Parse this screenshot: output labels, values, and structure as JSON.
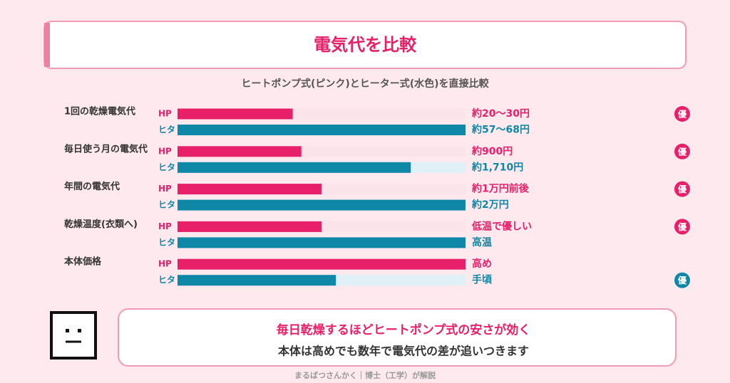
{
  "title": "電気代を比較",
  "subtitle": "ヒートポンプ式(ピンク)とヒーター式(水色)を直接比較",
  "series_labels": [
    "HP",
    "ヒタ"
  ],
  "colors": {
    "hp": "#e8206a",
    "heater": "#0f88a8",
    "hp_track": "#fbe3ea",
    "heater_track": "#dff1f6"
  },
  "rows": [
    {
      "label": "1回の乾燥電気代",
      "hp": {
        "value": 40,
        "text": "約20〜30円"
      },
      "heater": {
        "value": 100,
        "text": "約57〜68円"
      },
      "badge": {
        "text": "優",
        "side": "hp"
      }
    },
    {
      "label": "毎日使う月の電気代",
      "hp": {
        "value": 43,
        "text": "約900円"
      },
      "heater": {
        "value": 81,
        "text": "約1,710円"
      },
      "badge": {
        "text": "優",
        "side": "hp"
      }
    },
    {
      "label": "年間の電気代",
      "hp": {
        "value": 50,
        "text": "約1万円前後"
      },
      "heater": {
        "value": 100,
        "text": "約2万円"
      },
      "badge": {
        "text": "優",
        "side": "hp"
      }
    },
    {
      "label": "乾燥温度(衣類へ)",
      "hp": {
        "value": 50,
        "text": "低温で優しい"
      },
      "heater": {
        "value": 100,
        "text": "高温"
      },
      "badge": {
        "text": "優",
        "side": "hp"
      }
    },
    {
      "label": "本体価格",
      "hp": {
        "value": 100,
        "text": "高め"
      },
      "heater": {
        "value": 55,
        "text": "手頃"
      },
      "badge": {
        "text": "優",
        "side": "heater"
      }
    }
  ],
  "note": {
    "line1": "毎日乾燥するほどヒートポンプ式の安さが効く",
    "line2": "本体は高めでも数年で電気代の差が追いつきます"
  },
  "footer": "まるばつさんかく｜博士（工学）が解説"
}
